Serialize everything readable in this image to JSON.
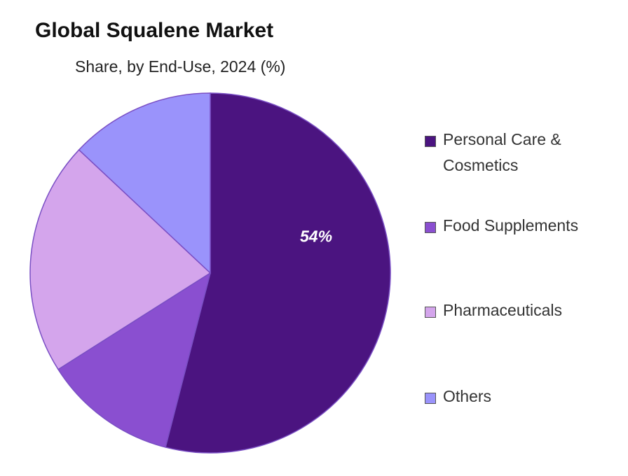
{
  "chart_data": {
    "type": "pie",
    "title": "Global Squalene Market",
    "subtitle": "Share, by End-Use, 2024 (%)",
    "categories": [
      "Personal Care & Cosmetics",
      "Food Supplements",
      "Pharmaceuticals",
      "Others"
    ],
    "values": [
      54,
      12,
      21,
      13
    ],
    "value_labels": [
      "54%",
      null,
      null,
      null
    ],
    "colors": [
      "#4b1480",
      "#8a4fd0",
      "#d4a5ec",
      "#9a93fb"
    ],
    "legend": "right"
  }
}
